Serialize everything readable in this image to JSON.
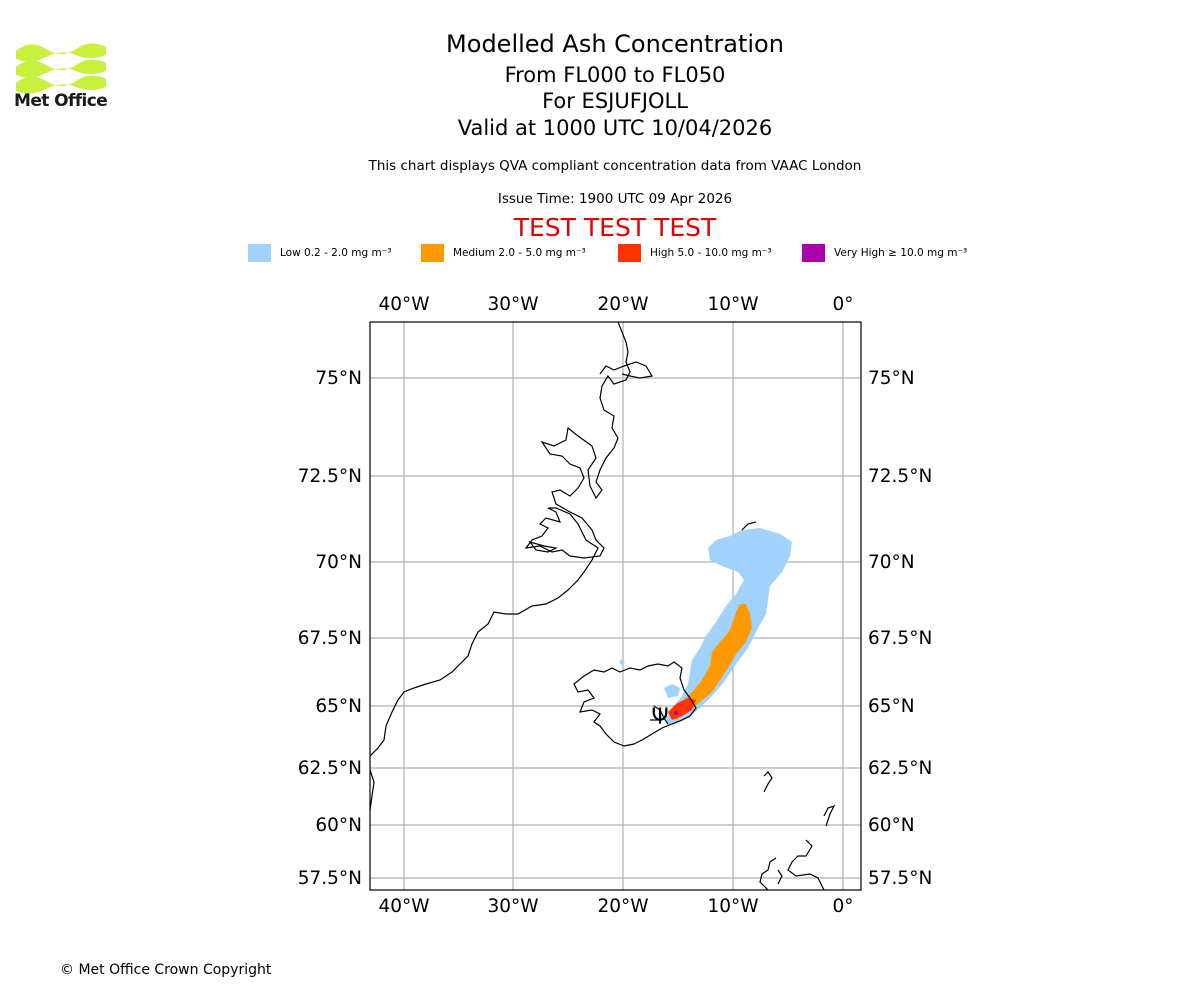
{
  "header": {
    "logo_text": "Met Office",
    "title": "Modelled Ash Concentration",
    "flight_levels": "From FL000 to FL050",
    "volcano_line": "For ESJUFJOLL",
    "valid_time": "Valid at 1000 UTC 10/04/2026",
    "description": "This chart displays QVA compliant concentration data from VAAC London",
    "issue_time": "Issue Time: 1900 UTC 09 Apr 2026",
    "test_banner": "TEST TEST TEST"
  },
  "legend": [
    {
      "label": "Low 0.2 - 2.0 mg m⁻³",
      "color": "#a0d2fb"
    },
    {
      "label": "Medium 2.0 - 5.0 mg m⁻³",
      "color": "#ff9900"
    },
    {
      "label": "High 5.0 - 10.0 mg m⁻³",
      "color": "#ff3300"
    },
    {
      "label": "Very High  ≥  10.0 mg m⁻³",
      "color": "#aa00aa"
    }
  ],
  "map": {
    "lon_ticks": [
      "40°W",
      "30°W",
      "20°W",
      "10°W",
      "0°"
    ],
    "lat_ticks": [
      "75°N",
      "72.5°N",
      "70°N",
      "67.5°N",
      "65°N",
      "62.5°N",
      "60°N",
      "57.5°N"
    ],
    "volcano": "ESJUFJOLL",
    "volcano_symbol": "Ψ"
  },
  "footer": {
    "copyright": "© Met Office Crown Copyright"
  }
}
